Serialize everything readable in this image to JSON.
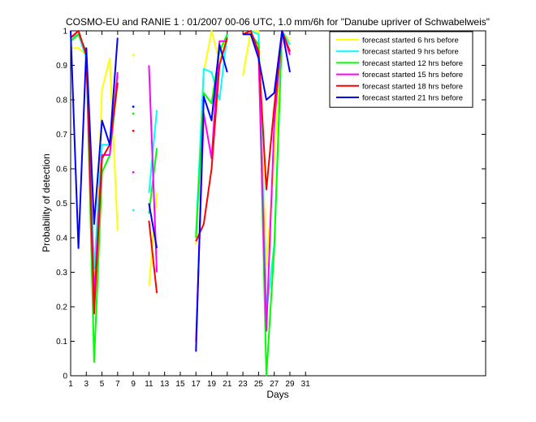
{
  "chart_data": {
    "type": "line",
    "title": "COSMO-EU and RANIE 1 : 01/2007 00-06 UTC, 1.0 mm/6h for \"Danube upriver of Schwabelweis\"",
    "xlabel": "Days",
    "ylabel": "Probability of detection",
    "xlim": [
      1,
      54
    ],
    "ylim": [
      0,
      1
    ],
    "xticks": [
      "1",
      "3",
      "5",
      "7",
      "9",
      "11",
      "13",
      "15",
      "17",
      "19",
      "21",
      "23",
      "25",
      "27",
      "29",
      "31"
    ],
    "yticks": [
      "0",
      "0.1",
      "0.2",
      "0.3",
      "0.4",
      "0.5",
      "0.6",
      "0.7",
      "0.8",
      "0.9",
      "1"
    ],
    "legend_position": "top-right",
    "grid": false,
    "series": [
      {
        "name": "forecast started 6 hrs before",
        "color": "#ffff00",
        "x": [
          1,
          2,
          3,
          4,
          5,
          6,
          7,
          null,
          9,
          null,
          11,
          12,
          null,
          17,
          18,
          19,
          20,
          21,
          null,
          23,
          24,
          25,
          26,
          27,
          28,
          29
        ],
        "y": [
          0.95,
          0.95,
          0.93,
          0.22,
          0.83,
          0.92,
          0.42,
          null,
          0.93,
          null,
          0.26,
          0.53,
          null,
          0.38,
          0.88,
          1.0,
          0.91,
          0.99,
          null,
          0.87,
          1.0,
          1.0,
          0.32,
          0.62,
          1.0,
          0.97
        ]
      },
      {
        "name": "forecast started 9 hrs before",
        "color": "#00ffff",
        "x": [
          1,
          2,
          3,
          4,
          5,
          6,
          7,
          null,
          9,
          null,
          11,
          12,
          null,
          17,
          18,
          19,
          20,
          21,
          null,
          23,
          24,
          25,
          26,
          27,
          28,
          29
        ],
        "y": [
          0.98,
          0.99,
          0.92,
          0.31,
          0.67,
          0.67,
          0.87,
          null,
          0.48,
          null,
          0.53,
          0.77,
          null,
          0.41,
          0.89,
          0.88,
          0.8,
          0.99,
          null,
          0.99,
          1.0,
          0.99,
          0.18,
          0.38,
          1.0,
          0.96
        ]
      },
      {
        "name": "forecast started 12 hrs before",
        "color": "#00ff00",
        "x": [
          1,
          2,
          3,
          4,
          5,
          6,
          7,
          null,
          9,
          null,
          11,
          12,
          null,
          17,
          18,
          19,
          20,
          21,
          null,
          23,
          24,
          25,
          26,
          27,
          28,
          29
        ],
        "y": [
          0.97,
          0.99,
          0.94,
          0.04,
          0.59,
          0.64,
          0.85,
          null,
          0.76,
          null,
          0.47,
          0.66,
          null,
          0.4,
          0.82,
          0.79,
          0.94,
          0.99,
          null,
          0.99,
          0.99,
          0.96,
          0.0,
          0.37,
          1.0,
          0.94
        ]
      },
      {
        "name": "forecast started 15 hrs before",
        "color": "#ff00ff",
        "x": [
          1,
          2,
          3,
          4,
          5,
          6,
          7,
          null,
          9,
          null,
          11,
          12,
          null,
          17,
          18,
          19,
          20,
          21,
          null,
          23,
          24,
          25,
          26,
          27,
          28,
          29
        ],
        "y": [
          0.98,
          1.0,
          0.93,
          0.23,
          0.64,
          0.64,
          0.88,
          null,
          0.59,
          null,
          0.9,
          0.3,
          null,
          0.1,
          0.76,
          0.63,
          0.97,
          0.97,
          null,
          0.99,
          1.0,
          0.93,
          0.13,
          0.73,
          1.0,
          0.93
        ]
      },
      {
        "name": "forecast started 18 hrs before",
        "color": "#ff0000",
        "x": [
          1,
          2,
          3,
          4,
          5,
          6,
          7,
          null,
          9,
          null,
          11,
          12,
          null,
          17,
          18,
          19,
          20,
          21,
          null,
          23,
          24,
          25,
          26,
          27,
          28,
          29
        ],
        "y": [
          0.98,
          1.0,
          0.93,
          0.18,
          0.63,
          0.67,
          0.85,
          null,
          0.71,
          null,
          0.45,
          0.24,
          null,
          0.39,
          0.44,
          0.6,
          0.9,
          0.98,
          null,
          0.99,
          1.0,
          0.94,
          0.54,
          0.78,
          1.0,
          0.94
        ]
      },
      {
        "name": "forecast started 21 hrs before",
        "color": "#0000ff",
        "x": [
          1,
          2,
          3,
          4,
          5,
          6,
          7,
          null,
          9,
          null,
          11,
          12,
          null,
          17,
          18,
          19,
          20,
          21,
          null,
          23,
          24,
          25,
          26,
          27,
          28,
          29
        ],
        "y": [
          1.0,
          0.37,
          0.95,
          0.44,
          0.74,
          0.67,
          0.98,
          null,
          0.78,
          null,
          0.5,
          0.37,
          null,
          0.07,
          0.81,
          0.74,
          0.96,
          0.88,
          null,
          0.99,
          0.99,
          0.92,
          0.8,
          0.82,
          1.0,
          0.88
        ]
      }
    ]
  }
}
